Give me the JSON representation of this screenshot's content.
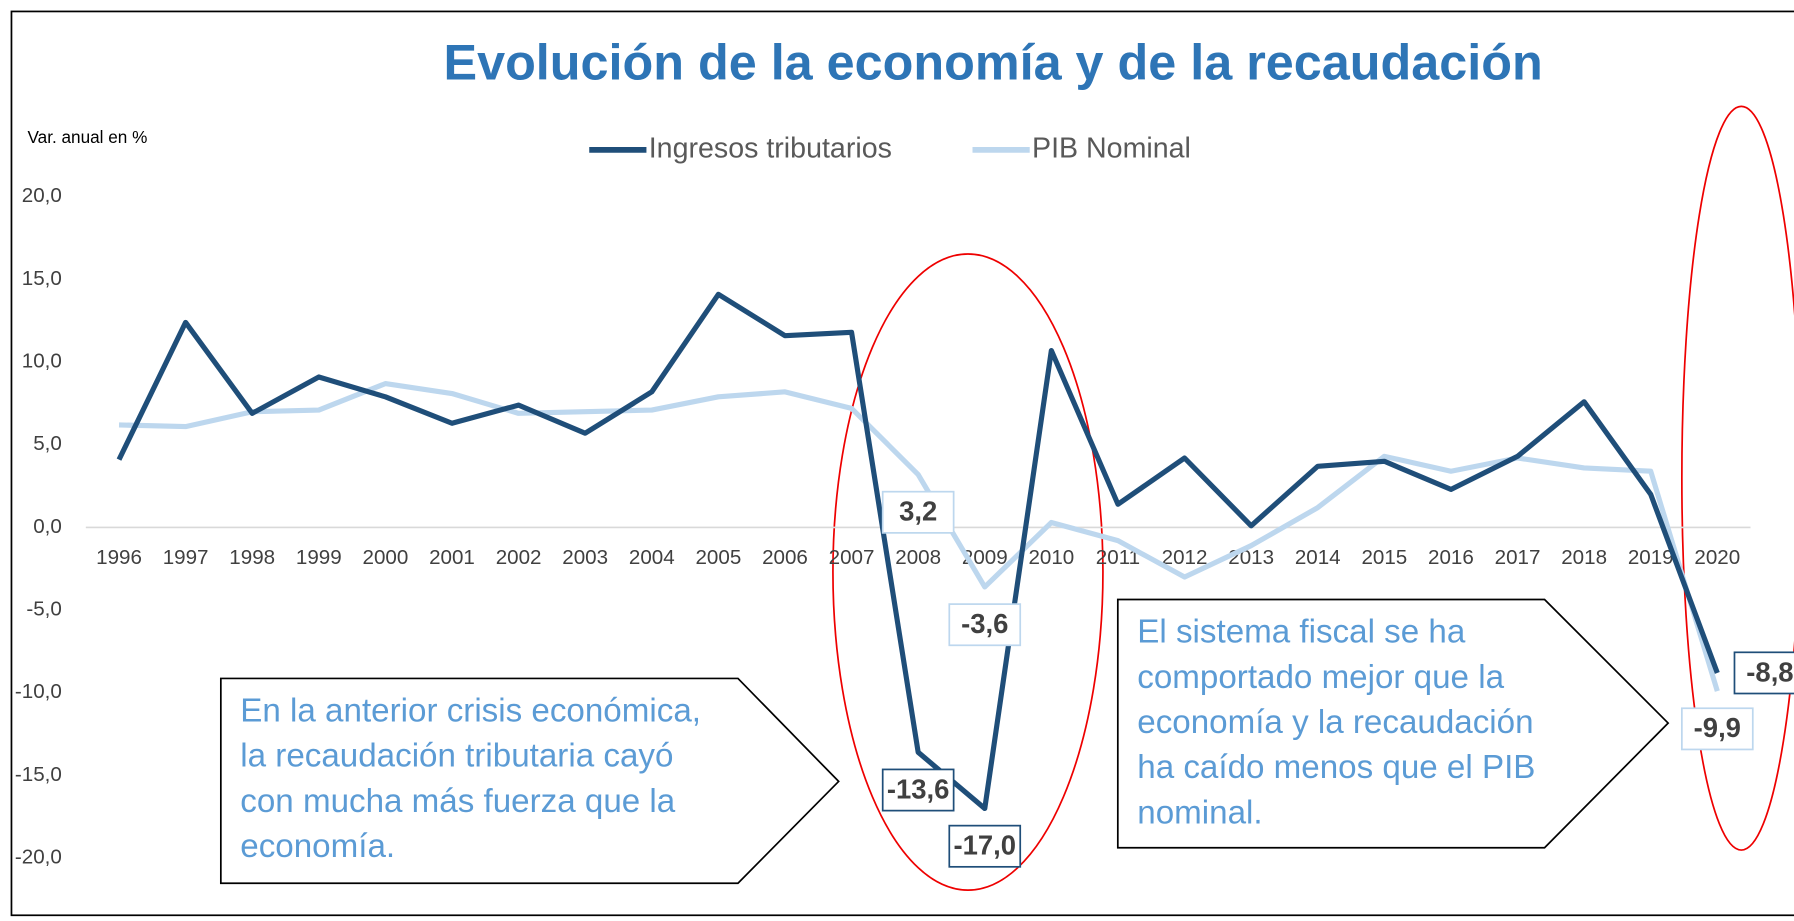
{
  "chart_data": {
    "type": "line",
    "title": "Evolución de la economía y de la recaudación",
    "y_label": "Var. anual en %",
    "categories": [
      "1996",
      "1997",
      "1998",
      "1999",
      "2000",
      "2001",
      "2002",
      "2003",
      "2004",
      "2005",
      "2006",
      "2007",
      "2008",
      "2009",
      "2010",
      "2011",
      "2012",
      "2013",
      "2014",
      "2015",
      "2016",
      "2017",
      "2018",
      "2019",
      "2020"
    ],
    "series": [
      {
        "name": "Ingresos tributarios",
        "color": "#1f4e79",
        "values": [
          4.1,
          12.4,
          6.9,
          9.1,
          7.9,
          6.3,
          7.4,
          5.7,
          8.2,
          14.1,
          11.6,
          11.8,
          -13.6,
          -17.0,
          10.7,
          1.4,
          4.2,
          0.1,
          3.7,
          4.0,
          2.3,
          4.3,
          7.6,
          2.0,
          -8.8
        ],
        "value_labels": [
          null,
          null,
          null,
          null,
          null,
          null,
          null,
          null,
          null,
          null,
          null,
          null,
          "-13,6",
          "-17,0",
          null,
          null,
          null,
          null,
          null,
          null,
          null,
          null,
          null,
          null,
          "-8,8"
        ]
      },
      {
        "name": "PIB Nominal",
        "color": "#bdd7ee",
        "values": [
          6.2,
          6.1,
          7.0,
          7.1,
          8.7,
          8.1,
          6.9,
          7.0,
          7.1,
          7.9,
          8.2,
          7.2,
          3.2,
          -3.6,
          0.3,
          -0.8,
          -3.0,
          -1.1,
          1.2,
          4.3,
          3.4,
          4.2,
          3.6,
          3.4,
          -9.9
        ],
        "value_labels": [
          null,
          null,
          null,
          null,
          null,
          null,
          null,
          null,
          null,
          null,
          null,
          null,
          "3,2",
          "-3,6",
          null,
          null,
          null,
          null,
          null,
          null,
          null,
          null,
          null,
          null,
          "-9,9"
        ]
      }
    ],
    "ylim": [
      -20,
      20
    ],
    "yticks": [
      {
        "value": 20,
        "label": "20,0"
      },
      {
        "value": 15,
        "label": "15,0"
      },
      {
        "value": 10,
        "label": "10,0"
      },
      {
        "value": 5,
        "label": "5,0"
      },
      {
        "value": 0,
        "label": "0,0"
      },
      {
        "value": -5,
        "label": "-5,0"
      },
      {
        "value": -10,
        "label": "-10,0"
      },
      {
        "value": -15,
        "label": "-15,0"
      },
      {
        "value": -20,
        "label": "-20,0"
      }
    ],
    "legend": "top",
    "annotations": [
      {
        "lines": [
          "En la anterior crisis económica,",
          "la recaudación tributaria cayó",
          "con mucha más fuerza que la",
          "economía."
        ]
      },
      {
        "lines": [
          "El sistema fiscal se ha",
          "comportado mejor que la",
          "economía y la recaudación",
          "ha caído menos que el PIB",
          "nominal."
        ]
      }
    ]
  }
}
